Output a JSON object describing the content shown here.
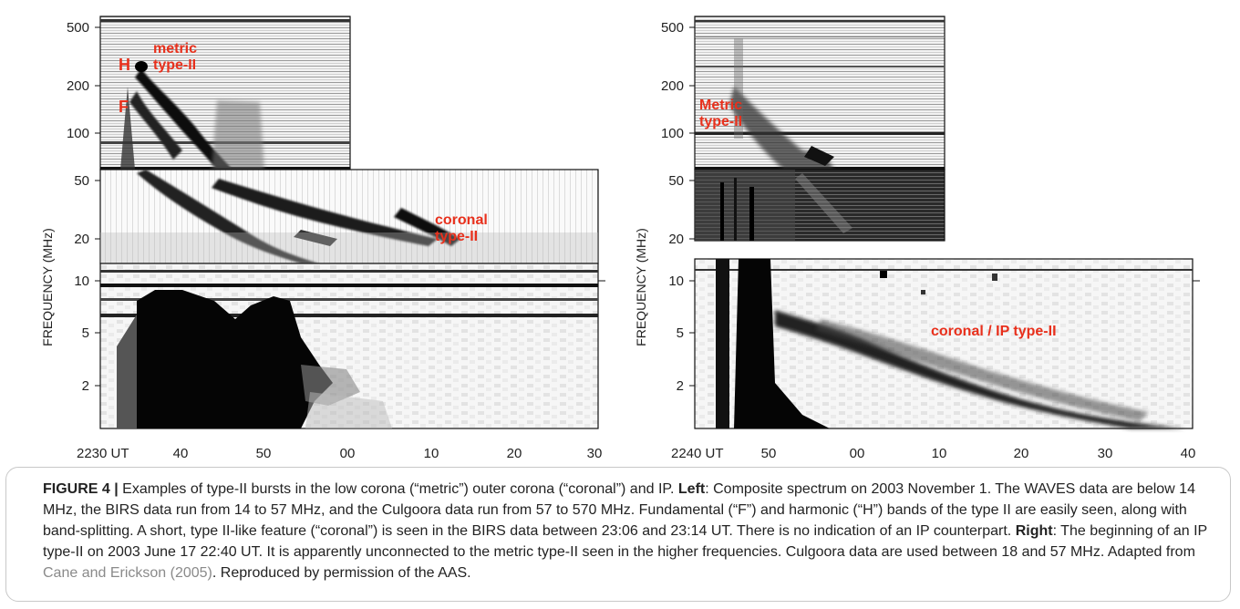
{
  "figure": {
    "left_panel": {
      "y_ticks": [
        "500",
        "200",
        "100",
        "50",
        "20",
        "10",
        "5",
        "2"
      ],
      "y_label": "FREQUENCY (MHz)",
      "x_ticks": [
        "2230 UT",
        "40",
        "50",
        "00",
        "10",
        "20",
        "30"
      ],
      "annotations": {
        "H": "H",
        "F": "F",
        "metric_1": "metric",
        "metric_2": "type-II",
        "coronal_1": "coronal",
        "coronal_2": "type-II"
      }
    },
    "right_panel": {
      "y_ticks": [
        "500",
        "200",
        "100",
        "50",
        "20",
        "10",
        "5",
        "2"
      ],
      "y_label": "FREQUENCY (MHz)",
      "x_ticks": [
        "2240 UT",
        "50",
        "00",
        "10",
        "20",
        "30",
        "40"
      ],
      "annotations": {
        "metric_1": "Metric",
        "metric_2": "type-II",
        "coronal_ip": "coronal / IP type-II"
      }
    },
    "annotation_color": "#e8301c"
  },
  "caption": {
    "label": "FIGURE 4 |",
    "s1": " Examples of type-II bursts in the low corona (“metric”) outer corona (“coronal”) and IP. ",
    "left_word": "Left",
    "s2": ": Composite spectrum on 2003 November 1. The WAVES data are below 14 MHz, the BIRS data run from 14 to 57 MHz, and the Culgoora data run from 57 to 570 MHz. Fundamental (“F”) and harmonic (“H”) bands of the type II are easily seen, along with band-splitting. A short, type II-like feature (“coronal”) is seen in the BIRS data between 23:06 and 23:14 UT. There is no indication of an IP counterpart. ",
    "right_word": "Right",
    "s3": ": The beginning of an IP type-II on 2003 June 17 22:40 UT. It is apparently unconnected to the metric type-II seen in the higher frequencies. Culgoora data are used between 18 and 57 MHz. Adapted from ",
    "citation": "Cane and Erickson (2005)",
    "s4": ". Reproduced by permission of the AAS."
  }
}
